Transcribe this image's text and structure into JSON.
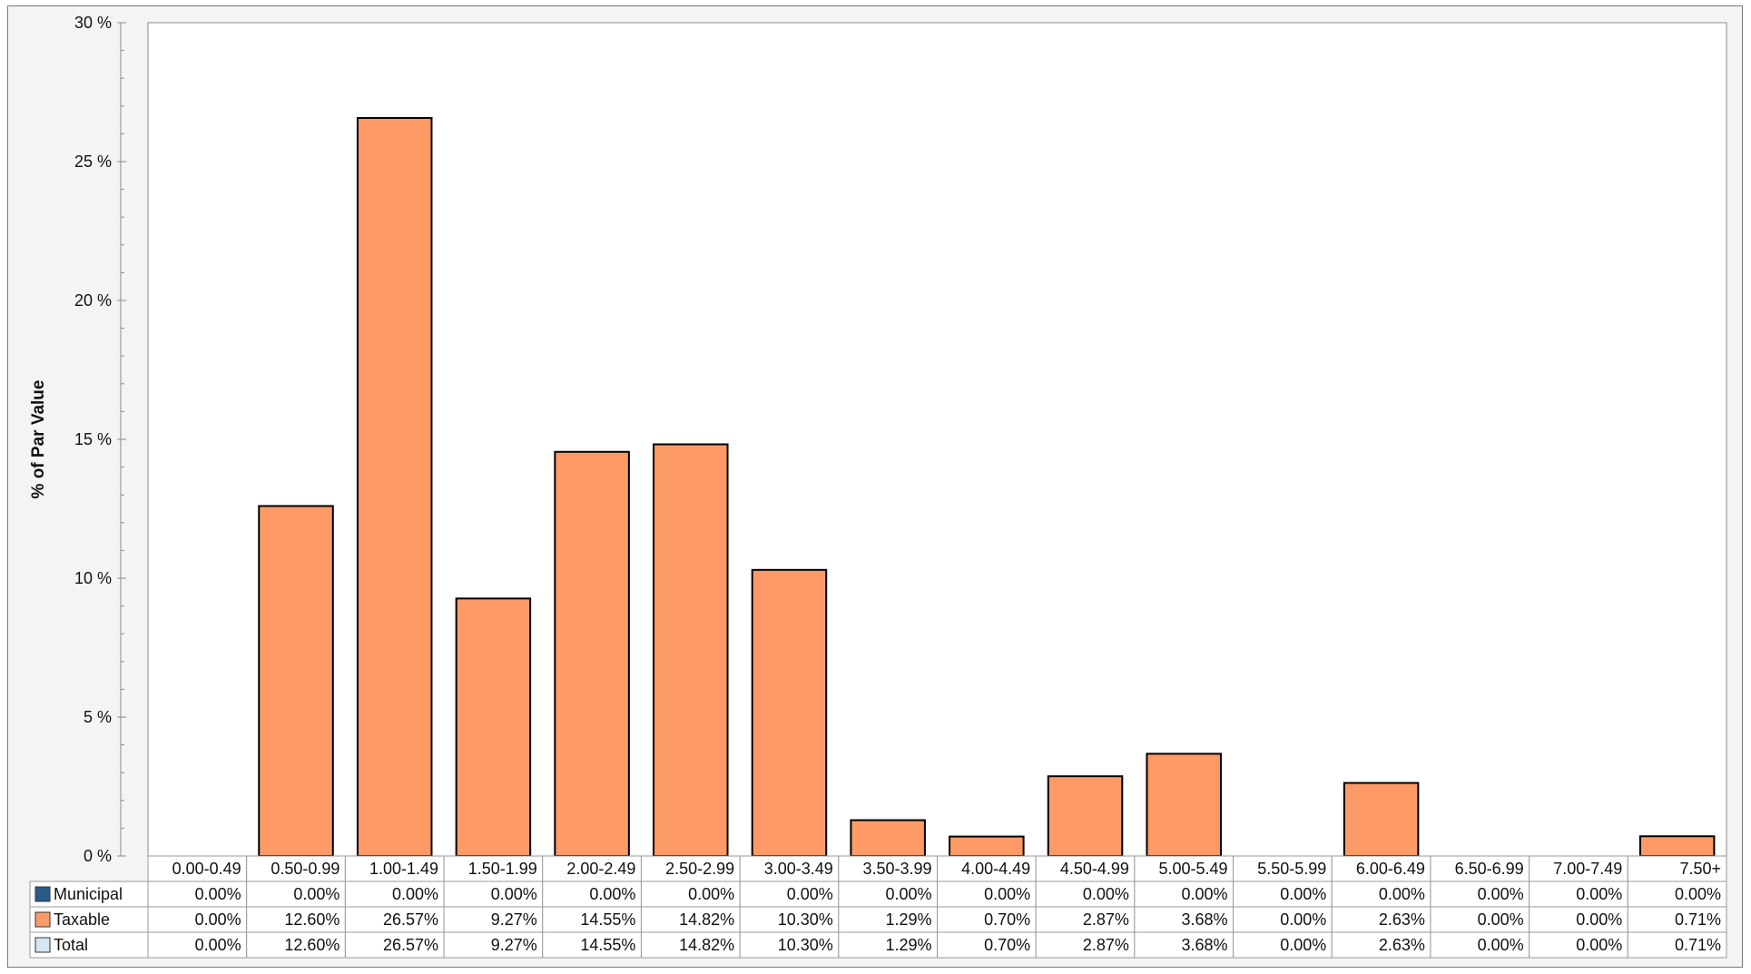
{
  "chart_data": {
    "type": "bar",
    "ylabel": "% of Par Value",
    "ylim": [
      0,
      30
    ],
    "yticks": [
      0,
      5,
      10,
      15,
      20,
      25,
      30
    ],
    "ytick_labels": [
      "0 %",
      "5 %",
      "10 %",
      "15 %",
      "20 %",
      "25 %",
      "30 %"
    ],
    "categories": [
      "0.00-0.49",
      "0.50-0.99",
      "1.00-1.49",
      "1.50-1.99",
      "2.00-2.49",
      "2.50-2.99",
      "3.00-3.49",
      "3.50-3.99",
      "4.00-4.49",
      "4.50-4.99",
      "5.00-5.49",
      "5.50-5.99",
      "6.00-6.49",
      "6.50-6.99",
      "7.00-7.49",
      "7.50+"
    ],
    "series": [
      {
        "name": "Municipal",
        "color": "#2b5a8a",
        "values": [
          0.0,
          0.0,
          0.0,
          0.0,
          0.0,
          0.0,
          0.0,
          0.0,
          0.0,
          0.0,
          0.0,
          0.0,
          0.0,
          0.0,
          0.0,
          0.0
        ]
      },
      {
        "name": "Taxable",
        "color": "#fd9a66",
        "values": [
          0.0,
          12.6,
          26.57,
          9.27,
          14.55,
          14.82,
          10.3,
          1.29,
          0.7,
          2.87,
          3.68,
          0.0,
          2.63,
          0.0,
          0.0,
          0.71
        ]
      },
      {
        "name": "Total",
        "color": "#d6e6f2",
        "values": [
          0.0,
          12.6,
          26.57,
          9.27,
          14.55,
          14.82,
          10.3,
          1.29,
          0.7,
          2.87,
          3.68,
          0.0,
          2.63,
          0.0,
          0.0,
          0.71
        ]
      }
    ],
    "table": {
      "rows": [
        {
          "series": "Municipal",
          "cells": [
            "0.00%",
            "0.00%",
            "0.00%",
            "0.00%",
            "0.00%",
            "0.00%",
            "0.00%",
            "0.00%",
            "0.00%",
            "0.00%",
            "0.00%",
            "0.00%",
            "0.00%",
            "0.00%",
            "0.00%",
            "0.00%"
          ]
        },
        {
          "series": "Taxable",
          "cells": [
            "0.00%",
            "12.60%",
            "26.57%",
            "9.27%",
            "14.55%",
            "14.82%",
            "10.30%",
            "1.29%",
            "0.70%",
            "2.87%",
            "3.68%",
            "0.00%",
            "2.63%",
            "0.00%",
            "0.00%",
            "0.71%"
          ]
        },
        {
          "series": "Total",
          "cells": [
            "0.00%",
            "12.60%",
            "26.57%",
            "9.27%",
            "14.55%",
            "14.82%",
            "10.30%",
            "1.29%",
            "0.70%",
            "2.87%",
            "3.68%",
            "0.00%",
            "2.63%",
            "0.00%",
            "0.00%",
            "0.71%"
          ]
        }
      ]
    },
    "grid": false,
    "legend": "data-table-left",
    "plot_background": "#ffffff",
    "bar_color": "#fd9a66"
  }
}
